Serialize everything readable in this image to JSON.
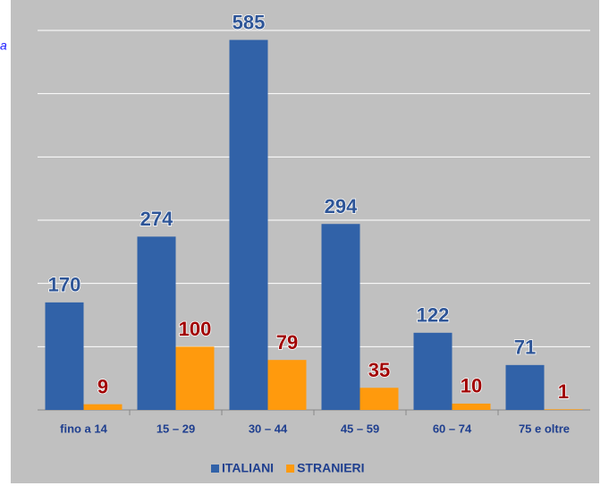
{
  "chart_data": {
    "type": "bar",
    "annotation": "a",
    "categories": [
      "fino a 14",
      "15 – 29",
      "30 – 44",
      "45 – 59",
      "60 – 74",
      "75 e oltre"
    ],
    "series": [
      {
        "name": "ITALIANI",
        "color": "#3162a8",
        "label_color": "#2e5597",
        "values": [
          170,
          274,
          585,
          294,
          122,
          71
        ]
      },
      {
        "name": "STRANIERI",
        "color": "#ff9a0d",
        "label_color": "#a10000",
        "values": [
          9,
          100,
          79,
          35,
          10,
          1
        ]
      }
    ],
    "ylim": [
      0,
      600
    ],
    "yticks": [
      0,
      100,
      200,
      300,
      400,
      500,
      600
    ],
    "grid": true
  }
}
